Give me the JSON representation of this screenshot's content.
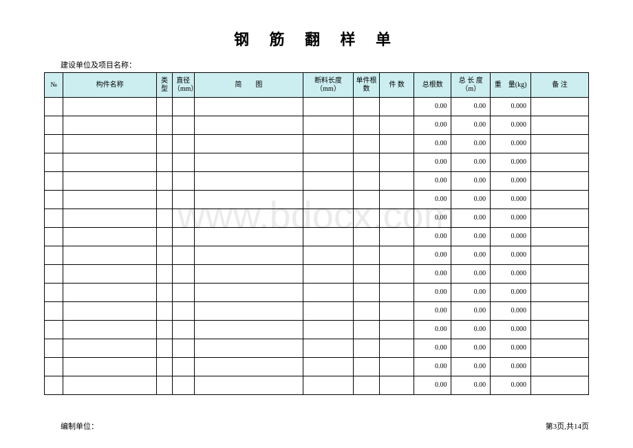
{
  "title": "钢 筋 翻 样 单",
  "subtitle": "建设单位及项目名称：",
  "watermark": "www.bdocx.com",
  "header": {
    "col_no": "№",
    "col_name": "构件名称",
    "col_type": "类型",
    "col_diameter": "直径（mm）",
    "col_diagram": "简　　图",
    "col_cut_len": "断料长度（mm）",
    "col_single_count": "单件根数",
    "col_pieces": "件 数",
    "col_total_count": "总根数",
    "col_total_len": "总 长 度（m）",
    "col_weight": "重　量(kg)",
    "col_remark": "备  注"
  },
  "rows": [
    {
      "total_count": "0.00",
      "total_len": "0.00",
      "weight": "0.000"
    },
    {
      "total_count": "0.00",
      "total_len": "0.00",
      "weight": "0.000"
    },
    {
      "total_count": "0.00",
      "total_len": "0.00",
      "weight": "0.000"
    },
    {
      "total_count": "0.00",
      "total_len": "0.00",
      "weight": "0.000"
    },
    {
      "total_count": "0.00",
      "total_len": "0.00",
      "weight": "0.000"
    },
    {
      "total_count": "0.00",
      "total_len": "0.00",
      "weight": "0.000"
    },
    {
      "total_count": "0.00",
      "total_len": "0.00",
      "weight": "0.000"
    },
    {
      "total_count": "0.00",
      "total_len": "0.00",
      "weight": "0.000"
    },
    {
      "total_count": "0.00",
      "total_len": "0.00",
      "weight": "0.000"
    },
    {
      "total_count": "0.00",
      "total_len": "0.00",
      "weight": "0.000"
    },
    {
      "total_count": "0.00",
      "total_len": "0.00",
      "weight": "0.000"
    },
    {
      "total_count": "0.00",
      "total_len": "0.00",
      "weight": "0.000"
    },
    {
      "total_count": "0.00",
      "total_len": "0.00",
      "weight": "0.000"
    },
    {
      "total_count": "0.00",
      "total_len": "0.00",
      "weight": "0.000"
    },
    {
      "total_count": "0.00",
      "total_len": "0.00",
      "weight": "0.000"
    },
    {
      "total_count": "0.00",
      "total_len": "0.00",
      "weight": "0.000"
    }
  ],
  "footer": {
    "left": "编制单位：",
    "right": "第3页,共14页"
  }
}
